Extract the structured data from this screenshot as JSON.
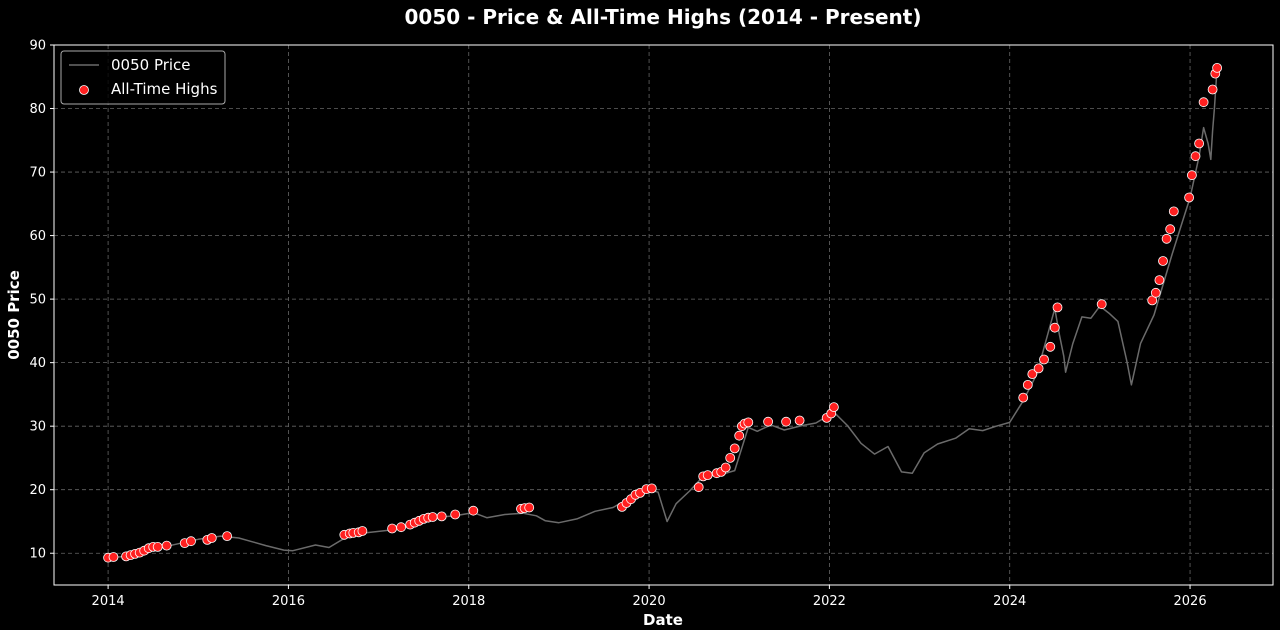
{
  "chart_data": {
    "type": "line",
    "title": "0050 - Price & All-Time Highs (2014 - Present)",
    "xlabel": "Date",
    "ylabel": "0050 Price",
    "xlim": [
      2013.4,
      2026.92
    ],
    "ylim": [
      5,
      90
    ],
    "xticks": [
      2014,
      2016,
      2018,
      2020,
      2022,
      2024,
      2026
    ],
    "xtick_labels": [
      "2014",
      "2016",
      "2018",
      "2020",
      "2022",
      "2024",
      "2026"
    ],
    "yticks": [
      10,
      20,
      30,
      40,
      50,
      60,
      70,
      80,
      90
    ],
    "ytick_labels": [
      "10",
      "20",
      "30",
      "40",
      "50",
      "60",
      "70",
      "80",
      "90"
    ],
    "grid": true,
    "legend_position": "top-left",
    "background": "#000000",
    "series": [
      {
        "name": "0050 Price",
        "kind": "line",
        "color": "#6b6b6b",
        "x": [
          2014.0,
          2014.3,
          2014.5,
          2014.75,
          2015.0,
          2015.25,
          2015.45,
          2015.6,
          2015.75,
          2015.95,
          2016.05,
          2016.3,
          2016.45,
          2016.65,
          2016.85,
          2017.1,
          2017.35,
          2017.6,
          2017.85,
          2018.05,
          2018.2,
          2018.4,
          2018.6,
          2018.75,
          2018.85,
          2019.0,
          2019.2,
          2019.4,
          2019.6,
          2019.8,
          2020.0,
          2020.1,
          2020.2,
          2020.3,
          2020.45,
          2020.6,
          2020.8,
          2020.95,
          2021.1,
          2021.2,
          2021.35,
          2021.5,
          2021.7,
          2021.85,
          2022.05,
          2022.2,
          2022.35,
          2022.5,
          2022.65,
          2022.8,
          2022.92,
          2023.05,
          2023.2,
          2023.4,
          2023.55,
          2023.7,
          2023.85,
          2024.0,
          2024.15,
          2024.3,
          2024.5,
          2024.55,
          2024.6,
          2024.62,
          2024.7,
          2024.8,
          2024.9,
          2025.0,
          2025.1,
          2025.2,
          2025.3,
          2025.35,
          2025.45,
          2025.6,
          2025.8,
          2025.9,
          2026.0,
          2026.1,
          2026.15,
          2026.2,
          2026.23,
          2026.25,
          2026.27,
          2026.3
        ],
        "y": [
          9.3,
          9.6,
          10.6,
          11.4,
          12.2,
          12.7,
          12.4,
          11.8,
          11.2,
          10.5,
          10.4,
          11.3,
          10.9,
          12.6,
          13.2,
          13.6,
          14.4,
          15.6,
          15.9,
          16.4,
          15.6,
          16.1,
          16.3,
          15.9,
          15.1,
          14.8,
          15.4,
          16.6,
          17.2,
          18.8,
          20.0,
          19.6,
          15.0,
          17.8,
          19.8,
          22.1,
          22.4,
          23.0,
          29.8,
          29.2,
          30.2,
          29.4,
          30.1,
          30.5,
          32.2,
          30.1,
          27.3,
          25.6,
          26.8,
          22.8,
          22.6,
          25.8,
          27.2,
          28.1,
          29.6,
          29.3,
          30.0,
          30.6,
          34.0,
          38.2,
          48.5,
          44.5,
          41.0,
          38.5,
          43.0,
          47.2,
          47.0,
          48.9,
          47.8,
          46.5,
          40.2,
          36.5,
          43.0,
          47.5,
          57.0,
          61.5,
          66.0,
          72.5,
          77.0,
          74.5,
          72.0,
          76.5,
          80.0,
          86.4
        ]
      },
      {
        "name": "All-Time Highs",
        "kind": "scatter",
        "color": "#ff2020",
        "x": [
          2014.0,
          2014.06,
          2014.2,
          2014.25,
          2014.3,
          2014.35,
          2014.4,
          2014.45,
          2014.5,
          2014.55,
          2014.65,
          2014.85,
          2014.92,
          2015.1,
          2015.15,
          2015.32,
          2016.62,
          2016.68,
          2016.72,
          2016.78,
          2016.82,
          2017.15,
          2017.25,
          2017.35,
          2017.4,
          2017.45,
          2017.5,
          2017.55,
          2017.6,
          2017.7,
          2017.85,
          2018.05,
          2018.58,
          2018.62,
          2018.67,
          2019.7,
          2019.75,
          2019.8,
          2019.85,
          2019.9,
          2019.97,
          2020.03,
          2020.55,
          2020.6,
          2020.65,
          2020.75,
          2020.8,
          2020.85,
          2020.9,
          2020.95,
          2021.0,
          2021.03,
          2021.06,
          2021.1,
          2021.32,
          2021.52,
          2021.67,
          2021.97,
          2022.02,
          2022.05,
          2024.15,
          2024.2,
          2024.25,
          2024.32,
          2024.38,
          2024.45,
          2024.5,
          2024.53,
          2025.02,
          2025.58,
          2025.62,
          2025.66,
          2025.7,
          2025.74,
          2025.78,
          2025.82,
          2025.99,
          2026.02,
          2026.06,
          2026.1,
          2026.15,
          2026.25,
          2026.28,
          2026.3
        ],
        "y": [
          9.3,
          9.4,
          9.5,
          9.7,
          9.9,
          10.1,
          10.4,
          10.8,
          11.0,
          11.0,
          11.2,
          11.6,
          11.9,
          12.1,
          12.4,
          12.7,
          12.9,
          13.1,
          13.2,
          13.3,
          13.5,
          13.9,
          14.1,
          14.5,
          14.8,
          15.1,
          15.4,
          15.6,
          15.7,
          15.8,
          16.1,
          16.7,
          17.0,
          17.1,
          17.2,
          17.3,
          17.9,
          18.5,
          19.2,
          19.5,
          20.1,
          20.2,
          20.4,
          22.1,
          22.3,
          22.6,
          22.8,
          23.5,
          25.0,
          26.5,
          28.5,
          30.0,
          30.4,
          30.6,
          30.7,
          30.7,
          30.9,
          31.3,
          32.0,
          33.0,
          34.5,
          36.5,
          38.2,
          39.1,
          40.5,
          42.5,
          45.5,
          48.7,
          49.2,
          49.8,
          51.0,
          53.0,
          56.0,
          59.5,
          61.0,
          63.8,
          66.0,
          69.5,
          72.5,
          74.5,
          81.0,
          83.0,
          85.5,
          86.4
        ]
      }
    ]
  }
}
